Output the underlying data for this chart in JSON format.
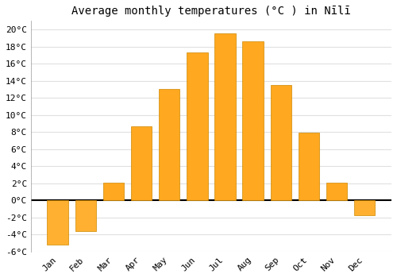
{
  "title": "Average monthly temperatures (°C ) in Nīlī",
  "months": [
    "Jan",
    "Feb",
    "Mar",
    "Apr",
    "May",
    "Jun",
    "Jul",
    "Aug",
    "Sep",
    "Oct",
    "Nov",
    "Dec"
  ],
  "values": [
    -5.2,
    -3.6,
    2.1,
    8.7,
    13.0,
    17.3,
    19.5,
    18.6,
    13.5,
    7.9,
    2.1,
    -1.7
  ],
  "bar_color_positive": "#FFA820",
  "bar_color_negative": "#FFB030",
  "bar_edge_color": "#CC8800",
  "ylim": [
    -6,
    21
  ],
  "yticks": [
    -6,
    -4,
    -2,
    0,
    2,
    4,
    6,
    8,
    10,
    12,
    14,
    16,
    18,
    20
  ],
  "background_color": "#ffffff",
  "grid_color": "#e0e0e0",
  "title_fontsize": 10,
  "tick_fontsize": 8,
  "bar_width": 0.75
}
